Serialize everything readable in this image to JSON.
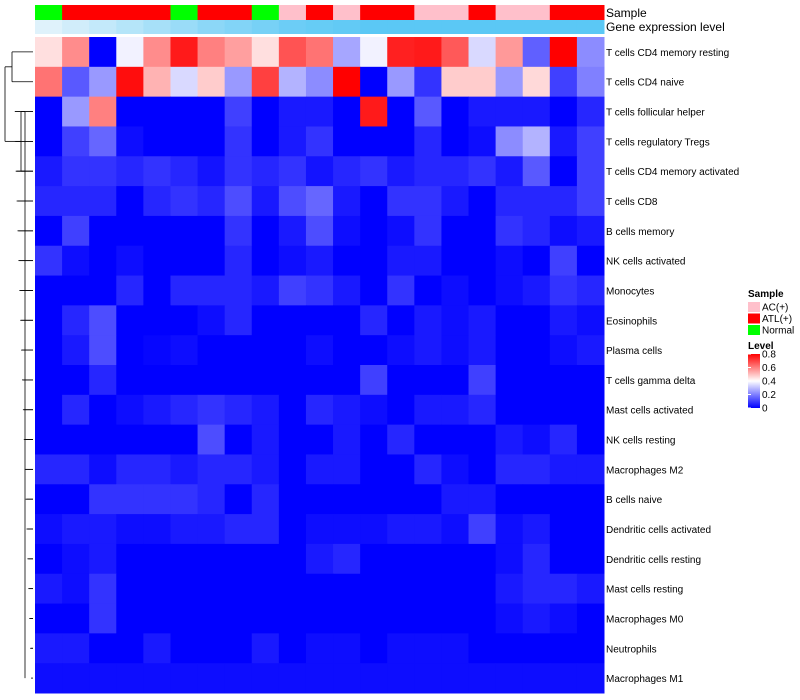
{
  "chart_data": {
    "type": "heatmap",
    "title": "",
    "annotation_tracks": [
      {
        "name": "Sample",
        "values": [
          "Normal",
          "ATL(+)",
          "ATL(+)",
          "ATL(+)",
          "ATL(+)",
          "Normal",
          "ATL(+)",
          "ATL(+)",
          "Normal",
          "AC(+)",
          "ATL(+)",
          "AC(+)",
          "ATL(+)",
          "ATL(+)",
          "AC(+)",
          "AC(+)",
          "ATL(+)",
          "AC(+)",
          "AC(+)",
          "ATL(+)",
          "ATL(+)"
        ]
      },
      {
        "name": "Gene expression level",
        "values": [
          0.05,
          0.15,
          0.25,
          0.35,
          0.45,
          0.55,
          0.65,
          0.72,
          0.8,
          0.88,
          0.92,
          0.95,
          1,
          1,
          1,
          1,
          1,
          1,
          1,
          1,
          1
        ]
      }
    ],
    "rows": [
      "T cells CD4 memory resting",
      "T cells CD4 naive",
      "T cells follicular helper",
      "T cells regulatory  Tregs",
      "T cells CD4 memory activated",
      "T cells CD8",
      "B cells memory",
      "NK cells activated",
      "Monocytes",
      "Eosinophils",
      "Plasma cells",
      "T cells gamma delta",
      "Mast cells activated",
      "NK cells resting",
      "Macrophages M2",
      "B cells naive",
      "Dendritic cells activated",
      "Dendritic cells resting",
      "Mast cells resting",
      "Macrophages M0",
      "Neutrophils",
      "Macrophages M1"
    ],
    "values": [
      [
        0.45,
        0.58,
        0.0,
        0.38,
        0.58,
        0.76,
        0.6,
        0.55,
        0.45,
        0.67,
        0.62,
        0.26,
        0.38,
        0.75,
        0.76,
        0.66,
        0.34,
        0.56,
        0.15,
        0.8,
        0.22
      ],
      [
        0.62,
        0.14,
        0.24,
        0.78,
        0.52,
        0.34,
        0.48,
        0.24,
        0.7,
        0.28,
        0.22,
        0.8,
        0.0,
        0.24,
        0.08,
        0.48,
        0.48,
        0.24,
        0.46,
        0.1,
        0.2
      ],
      [
        0.0,
        0.24,
        0.6,
        0.0,
        0.0,
        0.0,
        0.0,
        0.1,
        0.0,
        0.04,
        0.04,
        0.0,
        0.76,
        0.0,
        0.14,
        0.0,
        0.04,
        0.04,
        0.04,
        0.0,
        0.06
      ],
      [
        0.0,
        0.1,
        0.16,
        0.02,
        0.0,
        0.0,
        0.0,
        0.08,
        0.0,
        0.04,
        0.08,
        0.0,
        0.0,
        0.0,
        0.06,
        0.0,
        0.02,
        0.22,
        0.28,
        0.04,
        0.1
      ],
      [
        0.04,
        0.08,
        0.08,
        0.06,
        0.08,
        0.06,
        0.03,
        0.08,
        0.06,
        0.08,
        0.03,
        0.06,
        0.08,
        0.04,
        0.06,
        0.06,
        0.08,
        0.04,
        0.14,
        0.0,
        0.1
      ],
      [
        0.06,
        0.06,
        0.06,
        0.0,
        0.06,
        0.08,
        0.06,
        0.12,
        0.04,
        0.12,
        0.16,
        0.04,
        0.0,
        0.08,
        0.08,
        0.04,
        0.0,
        0.06,
        0.06,
        0.06,
        0.1
      ],
      [
        0.0,
        0.1,
        0.0,
        0.0,
        0.0,
        0.0,
        0.0,
        0.08,
        0.0,
        0.04,
        0.12,
        0.02,
        0.0,
        0.02,
        0.08,
        0.0,
        0.0,
        0.08,
        0.06,
        0.02,
        0.04
      ],
      [
        0.08,
        0.02,
        0.0,
        0.02,
        0.0,
        0.0,
        0.0,
        0.06,
        0.0,
        0.02,
        0.04,
        0.0,
        0.0,
        0.04,
        0.04,
        0.0,
        0.0,
        0.02,
        0.0,
        0.1,
        0.0
      ],
      [
        0.0,
        0.0,
        0.0,
        0.06,
        0.0,
        0.06,
        0.06,
        0.06,
        0.04,
        0.1,
        0.08,
        0.04,
        0.0,
        0.08,
        0.0,
        0.02,
        0.0,
        0.02,
        0.04,
        0.08,
        0.06
      ],
      [
        0.0,
        0.06,
        0.12,
        0.0,
        0.0,
        0.0,
        0.02,
        0.06,
        0.0,
        0.0,
        0.0,
        0.0,
        0.06,
        0.0,
        0.04,
        0.02,
        0.04,
        0.0,
        0.0,
        0.04,
        0.02
      ],
      [
        0.0,
        0.04,
        0.12,
        0.0,
        0.01,
        0.02,
        0.0,
        0.0,
        0.0,
        0.0,
        0.02,
        0.0,
        0.0,
        0.02,
        0.04,
        0.02,
        0.04,
        0.0,
        0.0,
        0.02,
        0.04
      ],
      [
        0.0,
        0.0,
        0.06,
        0.0,
        0.0,
        0.0,
        0.0,
        0.0,
        0.0,
        0.0,
        0.0,
        0.0,
        0.1,
        0.0,
        0.0,
        0.0,
        0.1,
        0.0,
        0.0,
        0.0,
        0.0
      ],
      [
        0.0,
        0.06,
        0.0,
        0.02,
        0.04,
        0.06,
        0.08,
        0.06,
        0.04,
        0.0,
        0.06,
        0.04,
        0.02,
        0.0,
        0.04,
        0.04,
        0.06,
        0.0,
        0.0,
        0.0,
        0.0
      ],
      [
        0.0,
        0.0,
        0.0,
        0.0,
        0.0,
        0.0,
        0.12,
        0.0,
        0.04,
        0.0,
        0.0,
        0.04,
        0.0,
        0.06,
        0.0,
        0.0,
        0.0,
        0.04,
        0.02,
        0.06,
        0.0
      ],
      [
        0.06,
        0.06,
        0.02,
        0.06,
        0.06,
        0.04,
        0.06,
        0.06,
        0.04,
        0.0,
        0.04,
        0.04,
        0.0,
        0.0,
        0.06,
        0.02,
        0.0,
        0.06,
        0.06,
        0.04,
        0.04
      ],
      [
        0.0,
        0.0,
        0.08,
        0.08,
        0.08,
        0.08,
        0.06,
        0.0,
        0.06,
        0.0,
        0.0,
        0.0,
        0.0,
        0.0,
        0.0,
        0.04,
        0.04,
        0.0,
        0.0,
        0.0,
        0.0
      ],
      [
        0.02,
        0.04,
        0.04,
        0.02,
        0.02,
        0.04,
        0.04,
        0.06,
        0.06,
        0.0,
        0.02,
        0.02,
        0.02,
        0.04,
        0.04,
        0.02,
        0.1,
        0.02,
        0.04,
        0.0,
        0.0
      ],
      [
        0.0,
        0.02,
        0.04,
        0.0,
        0.0,
        0.0,
        0.0,
        0.0,
        0.0,
        0.0,
        0.04,
        0.06,
        0.0,
        0.0,
        0.0,
        0.0,
        0.0,
        0.02,
        0.06,
        0.0,
        0.0
      ],
      [
        0.04,
        0.02,
        0.08,
        0.0,
        0.0,
        0.0,
        0.0,
        0.0,
        0.0,
        0.0,
        0.0,
        0.0,
        0.0,
        0.0,
        0.0,
        0.0,
        0.0,
        0.04,
        0.06,
        0.06,
        0.04
      ],
      [
        0.0,
        0.0,
        0.08,
        0.0,
        0.0,
        0.0,
        0.0,
        0.0,
        0.0,
        0.0,
        0.0,
        0.0,
        0.0,
        0.0,
        0.0,
        0.0,
        0.0,
        0.02,
        0.04,
        0.02,
        0.0
      ],
      [
        0.04,
        0.04,
        0.0,
        0.0,
        0.04,
        0.0,
        0.0,
        0.0,
        0.04,
        0.0,
        0.02,
        0.02,
        0.0,
        0.02,
        0.02,
        0.02,
        0.0,
        0.0,
        0.0,
        0.0,
        0.0
      ],
      [
        0.02,
        0.02,
        0.02,
        0.02,
        0.02,
        0.02,
        0.02,
        0.02,
        0.02,
        0.02,
        0.02,
        0.02,
        0.02,
        0.02,
        0.02,
        0.02,
        0.02,
        0.02,
        0.02,
        0.02,
        0.02
      ]
    ],
    "color_scale": {
      "min": 0,
      "mid": 0.4,
      "max": 0.8,
      "low": "#0000ff",
      "mid_color": "#ffffff",
      "high": "#ff0000"
    },
    "legend": {
      "sample_title": "Sample",
      "sample_entries": [
        {
          "label": "AC(+)",
          "color": "#ffc0cb"
        },
        {
          "label": "ATL(+)",
          "color": "#ff0000"
        },
        {
          "label": "Normal",
          "color": "#00ff00"
        }
      ],
      "level_title": "Level",
      "level_ticks": [
        "0.8",
        "0.6",
        "0.4",
        "0.2",
        "0"
      ],
      "position": "right"
    },
    "expression_colors": {
      "low": "#e6f4fb",
      "high": "#5bc8f5"
    }
  }
}
